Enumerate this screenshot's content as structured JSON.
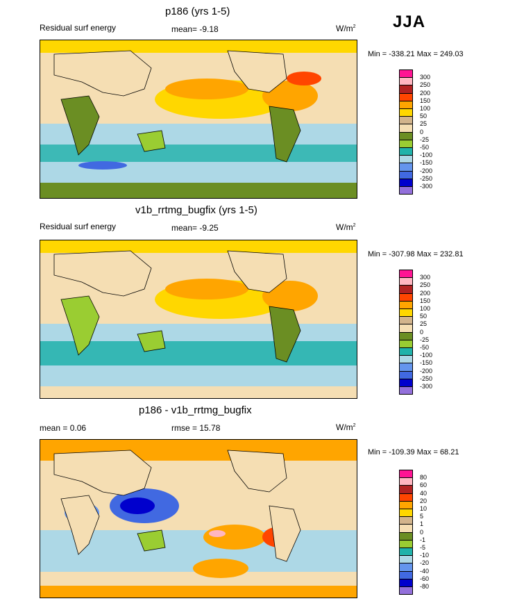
{
  "season": "JJA",
  "units_base": "W/m",
  "units_sup": "2",
  "colors": {
    "main": [
      "#9370db",
      "#0000cd",
      "#4169e1",
      "#6495ed",
      "#add8e6",
      "#20b2aa",
      "#9acd32",
      "#6b8e23",
      "#f5deb3",
      "#d2b48c",
      "#ffd700",
      "#ffa500",
      "#ff4500",
      "#b22222",
      "#ffb6c1",
      "#ff1493"
    ],
    "diff": [
      "#9370db",
      "#0000cd",
      "#4169e1",
      "#6495ed",
      "#add8e6",
      "#20b2aa",
      "#9acd32",
      "#6b8e23",
      "#f5deb3",
      "#d2b48c",
      "#ffd700",
      "#ffa500",
      "#ff4500",
      "#b22222",
      "#ffb6c1",
      "#ff1493"
    ],
    "land": "#6b8e23",
    "ocean_warm": "#ffd700",
    "ocean_cool": "#add8e6"
  },
  "chart_data": [
    {
      "type": "heatmap",
      "title": "p186 (yrs 1-5)",
      "left_label": "Residual surf energy",
      "mean_label": "mean=  -9.18",
      "minmax_label": "Min = -338.21 Max = 249.03",
      "levels": [
        "300",
        "250",
        "200",
        "150",
        "100",
        "50",
        "25",
        "0",
        "-25",
        "-50",
        "-100",
        "-150",
        "-200",
        "-250",
        "-300"
      ],
      "mean": -9.18,
      "min": -338.21,
      "max": 249.03
    },
    {
      "type": "heatmap",
      "title": "v1b_rrtmg_bugfix (yrs 1-5)",
      "left_label": "Residual surf energy",
      "mean_label": "mean=  -9.25",
      "minmax_label": "Min = -307.98 Max = 232.81",
      "levels": [
        "300",
        "250",
        "200",
        "150",
        "100",
        "50",
        "25",
        "0",
        "-25",
        "-50",
        "-100",
        "-150",
        "-200",
        "-250",
        "-300"
      ],
      "mean": -9.25,
      "min": -307.98,
      "max": 232.81
    },
    {
      "type": "heatmap",
      "title": "p186 - v1b_rrtmg_bugfix",
      "left_label": "mean =   0.06",
      "mean_label": "rmse =  15.78",
      "minmax_label": "Min = -109.39 Max =  68.21",
      "levels": [
        "80",
        "60",
        "40",
        "20",
        "10",
        "5",
        "1",
        "0",
        "-1",
        "-5",
        "-10",
        "-20",
        "-40",
        "-60",
        "-80"
      ],
      "mean": 0.06,
      "rmse": 15.78,
      "min": -109.39,
      "max": 68.21
    }
  ]
}
